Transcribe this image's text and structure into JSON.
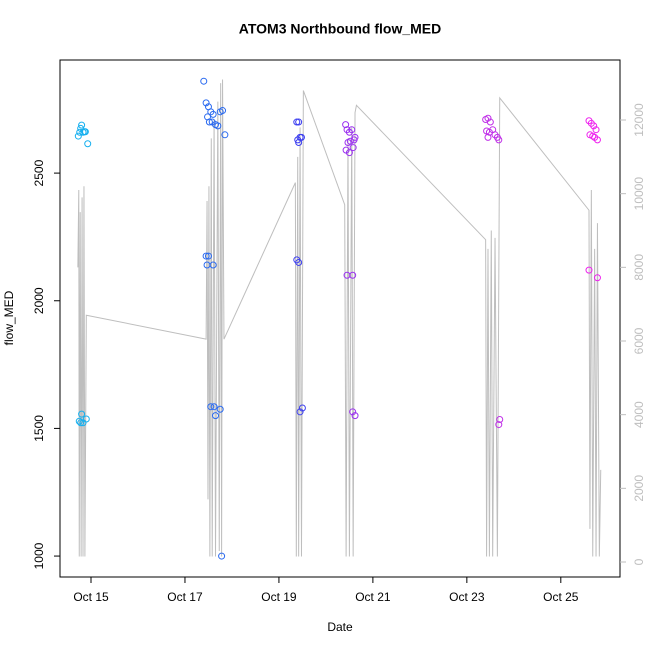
{
  "chart_data": {
    "type": "scatter",
    "title": "ATOM3 Northbound flow_MED",
    "x_label": "Date",
    "y_label": "flow_MED",
    "xlim": [
      14.34,
      26.26
    ],
    "xticks": [
      {
        "value": 15,
        "label": "Oct 15"
      },
      {
        "value": 17,
        "label": "Oct 17"
      },
      {
        "value": 19,
        "label": "Oct 19"
      },
      {
        "value": 21,
        "label": "Oct 21"
      },
      {
        "value": 23,
        "label": "Oct 23"
      },
      {
        "value": 25,
        "label": "Oct 25"
      }
    ],
    "ylim": [
      918,
      2943
    ],
    "yticks": [
      1000,
      1500,
      2000,
      2500
    ],
    "y2lim": [
      -407,
      13629
    ],
    "y2ticks": [
      0,
      2000,
      4000,
      6000,
      8000,
      10000,
      12000
    ],
    "y2_color": "#bebebe",
    "series": [
      {
        "type": "line",
        "axis": "y2",
        "color": "#bebebe",
        "x": [
          14.72,
          14.74,
          14.75,
          14.77,
          14.79,
          14.81,
          14.83,
          14.85,
          14.87,
          14.9,
          17.45,
          17.47,
          17.49,
          17.51,
          17.53,
          17.56,
          17.58,
          17.62,
          17.65,
          17.7,
          17.73,
          17.76,
          17.78,
          17.8,
          17.83,
          19.35,
          19.37,
          19.4,
          19.42,
          19.45,
          19.48,
          19.52,
          20.4,
          20.43,
          20.47,
          20.5,
          20.55,
          20.58,
          20.62,
          20.65,
          23.4,
          23.42,
          23.45,
          23.48,
          23.52,
          23.55,
          23.6,
          23.65,
          23.7,
          25.6,
          25.62,
          25.65,
          25.68,
          25.72,
          25.75,
          25.78,
          25.82,
          25.85
        ],
        "values": [
          8000,
          10100,
          150,
          9500,
          150,
          9900,
          150,
          10200,
          150,
          6700,
          6050,
          9800,
          1700,
          10200,
          150,
          11500,
          150,
          12000,
          150,
          12500,
          300,
          13000,
          150,
          13100,
          6050,
          10300,
          150,
          11000,
          150,
          11800,
          150,
          12800,
          9700,
          150,
          11500,
          150,
          11800,
          150,
          12200,
          12400,
          8750,
          150,
          8500,
          150,
          9000,
          150,
          8800,
          150,
          12600,
          9550,
          900,
          10100,
          150,
          8500,
          150,
          9200,
          150,
          2500
        ]
      },
      {
        "type": "scatter",
        "color": "#17b0ef",
        "x": [
          14.73,
          14.76,
          14.78,
          14.8,
          14.83,
          14.86,
          14.88,
          14.93,
          14.75,
          14.78,
          14.8,
          14.83,
          14.9
        ],
        "values": [
          2645,
          2660,
          2675,
          2688,
          2660,
          2662,
          2662,
          2615,
          1528,
          1522,
          1556,
          1522,
          1537
        ]
      },
      {
        "type": "scatter",
        "color": "#2a6af0",
        "x": [
          17.4,
          17.45,
          17.5,
          17.55,
          17.6,
          17.48,
          17.52,
          17.58,
          17.65,
          17.7,
          17.75,
          17.8,
          17.85,
          17.45,
          17.5,
          17.47,
          17.6,
          17.55,
          17.62,
          17.65,
          17.75,
          17.78
        ],
        "values": [
          2860,
          2775,
          2760,
          2740,
          2730,
          2720,
          2700,
          2700,
          2690,
          2685,
          2740,
          2745,
          2650,
          2175,
          2175,
          2140,
          2140,
          1585,
          1585,
          1550,
          1575,
          1000
        ]
      },
      {
        "type": "scatter",
        "color": "#3d3ff0",
        "x": [
          19.38,
          19.42,
          19.4,
          19.45,
          19.48,
          19.42,
          19.38,
          19.42,
          19.45,
          19.5
        ],
        "values": [
          2700,
          2700,
          2630,
          2640,
          2640,
          2620,
          2160,
          2150,
          1565,
          1580
        ]
      },
      {
        "type": "scatter",
        "color": "#9b30f0",
        "x": [
          20.42,
          20.45,
          20.5,
          20.55,
          20.47,
          20.52,
          20.6,
          20.43,
          20.5,
          20.58,
          20.62,
          20.45,
          20.57,
          20.57,
          20.62
        ],
        "values": [
          2690,
          2670,
          2660,
          2670,
          2620,
          2625,
          2630,
          2590,
          2580,
          2600,
          2640,
          2100,
          2100,
          1565,
          1550
        ]
      },
      {
        "type": "scatter",
        "color": "#c030e8",
        "x": [
          23.4,
          23.45,
          23.5,
          23.42,
          23.48,
          23.55,
          23.6,
          23.65,
          23.68,
          23.45,
          23.7,
          23.68
        ],
        "values": [
          2710,
          2715,
          2700,
          2665,
          2660,
          2670,
          2650,
          2640,
          2630,
          2640,
          1535,
          1515
        ]
      },
      {
        "type": "scatter",
        "color": "#ee22ee",
        "x": [
          25.6,
          25.65,
          25.7,
          25.75,
          25.62,
          25.68,
          25.72,
          25.78,
          25.6,
          25.78
        ],
        "values": [
          2705,
          2695,
          2685,
          2670,
          2650,
          2645,
          2640,
          2630,
          2120,
          2090
        ]
      }
    ]
  }
}
